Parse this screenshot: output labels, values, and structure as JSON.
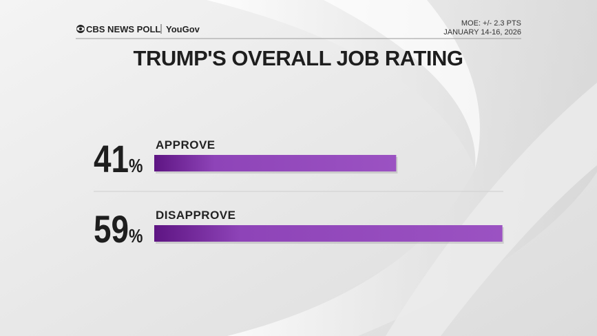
{
  "chart_data": {
    "type": "bar",
    "orientation": "horizontal",
    "title": "TRUMP'S OVERALL JOB RATING",
    "source": "CBS NEWS POLL",
    "partner": "YouGov",
    "moe": "MOE: +/- 2.3 PTS",
    "date": "JANUARY 14-16, 2026",
    "categories": [
      "APPROVE",
      "DISAPPROVE"
    ],
    "values": [
      41,
      59
    ],
    "value_labels": [
      "41%",
      "59%"
    ],
    "color": "#8e44b8"
  }
}
